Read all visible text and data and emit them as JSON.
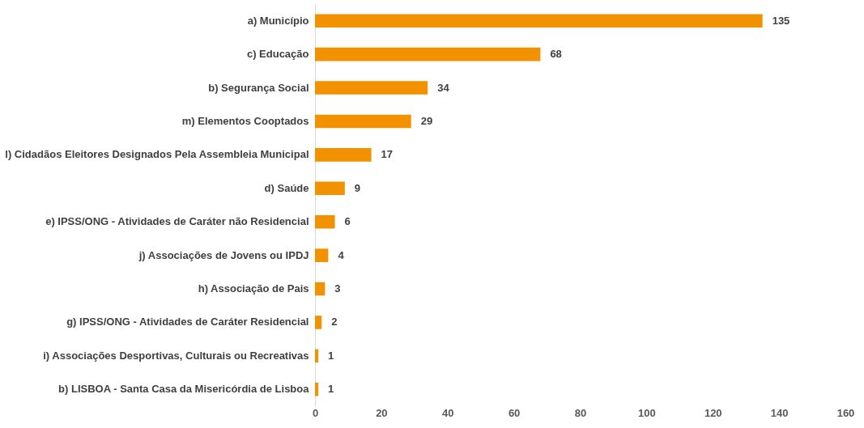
{
  "chart_data": {
    "type": "bar",
    "orientation": "horizontal",
    "categories": [
      "a) Município",
      "c) Educação",
      "b) Segurança Social",
      "m) Elementos Cooptados",
      "l) Cidadãos Eleitores Designados Pela Assembleia Municipal",
      "d) Saúde",
      "e) IPSS/ONG - Atividades de Caráter não Residencial",
      "j) Associações de Jovens ou IPDJ",
      "h) Associação de Pais",
      "g) IPSS/ONG - Atividades de Caráter Residencial",
      "i) Associações Desportivas, Culturais ou Recreativas",
      "b) LISBOA - Santa Casa da Misericórdia de Lisboa"
    ],
    "values": [
      135,
      68,
      34,
      29,
      17,
      9,
      6,
      4,
      3,
      2,
      1,
      1
    ],
    "color": "#f39200",
    "xlim": [
      0,
      160
    ],
    "xticks": [
      0,
      20,
      40,
      60,
      80,
      100,
      120,
      140,
      160
    ],
    "grid": false,
    "data_labels": true
  }
}
